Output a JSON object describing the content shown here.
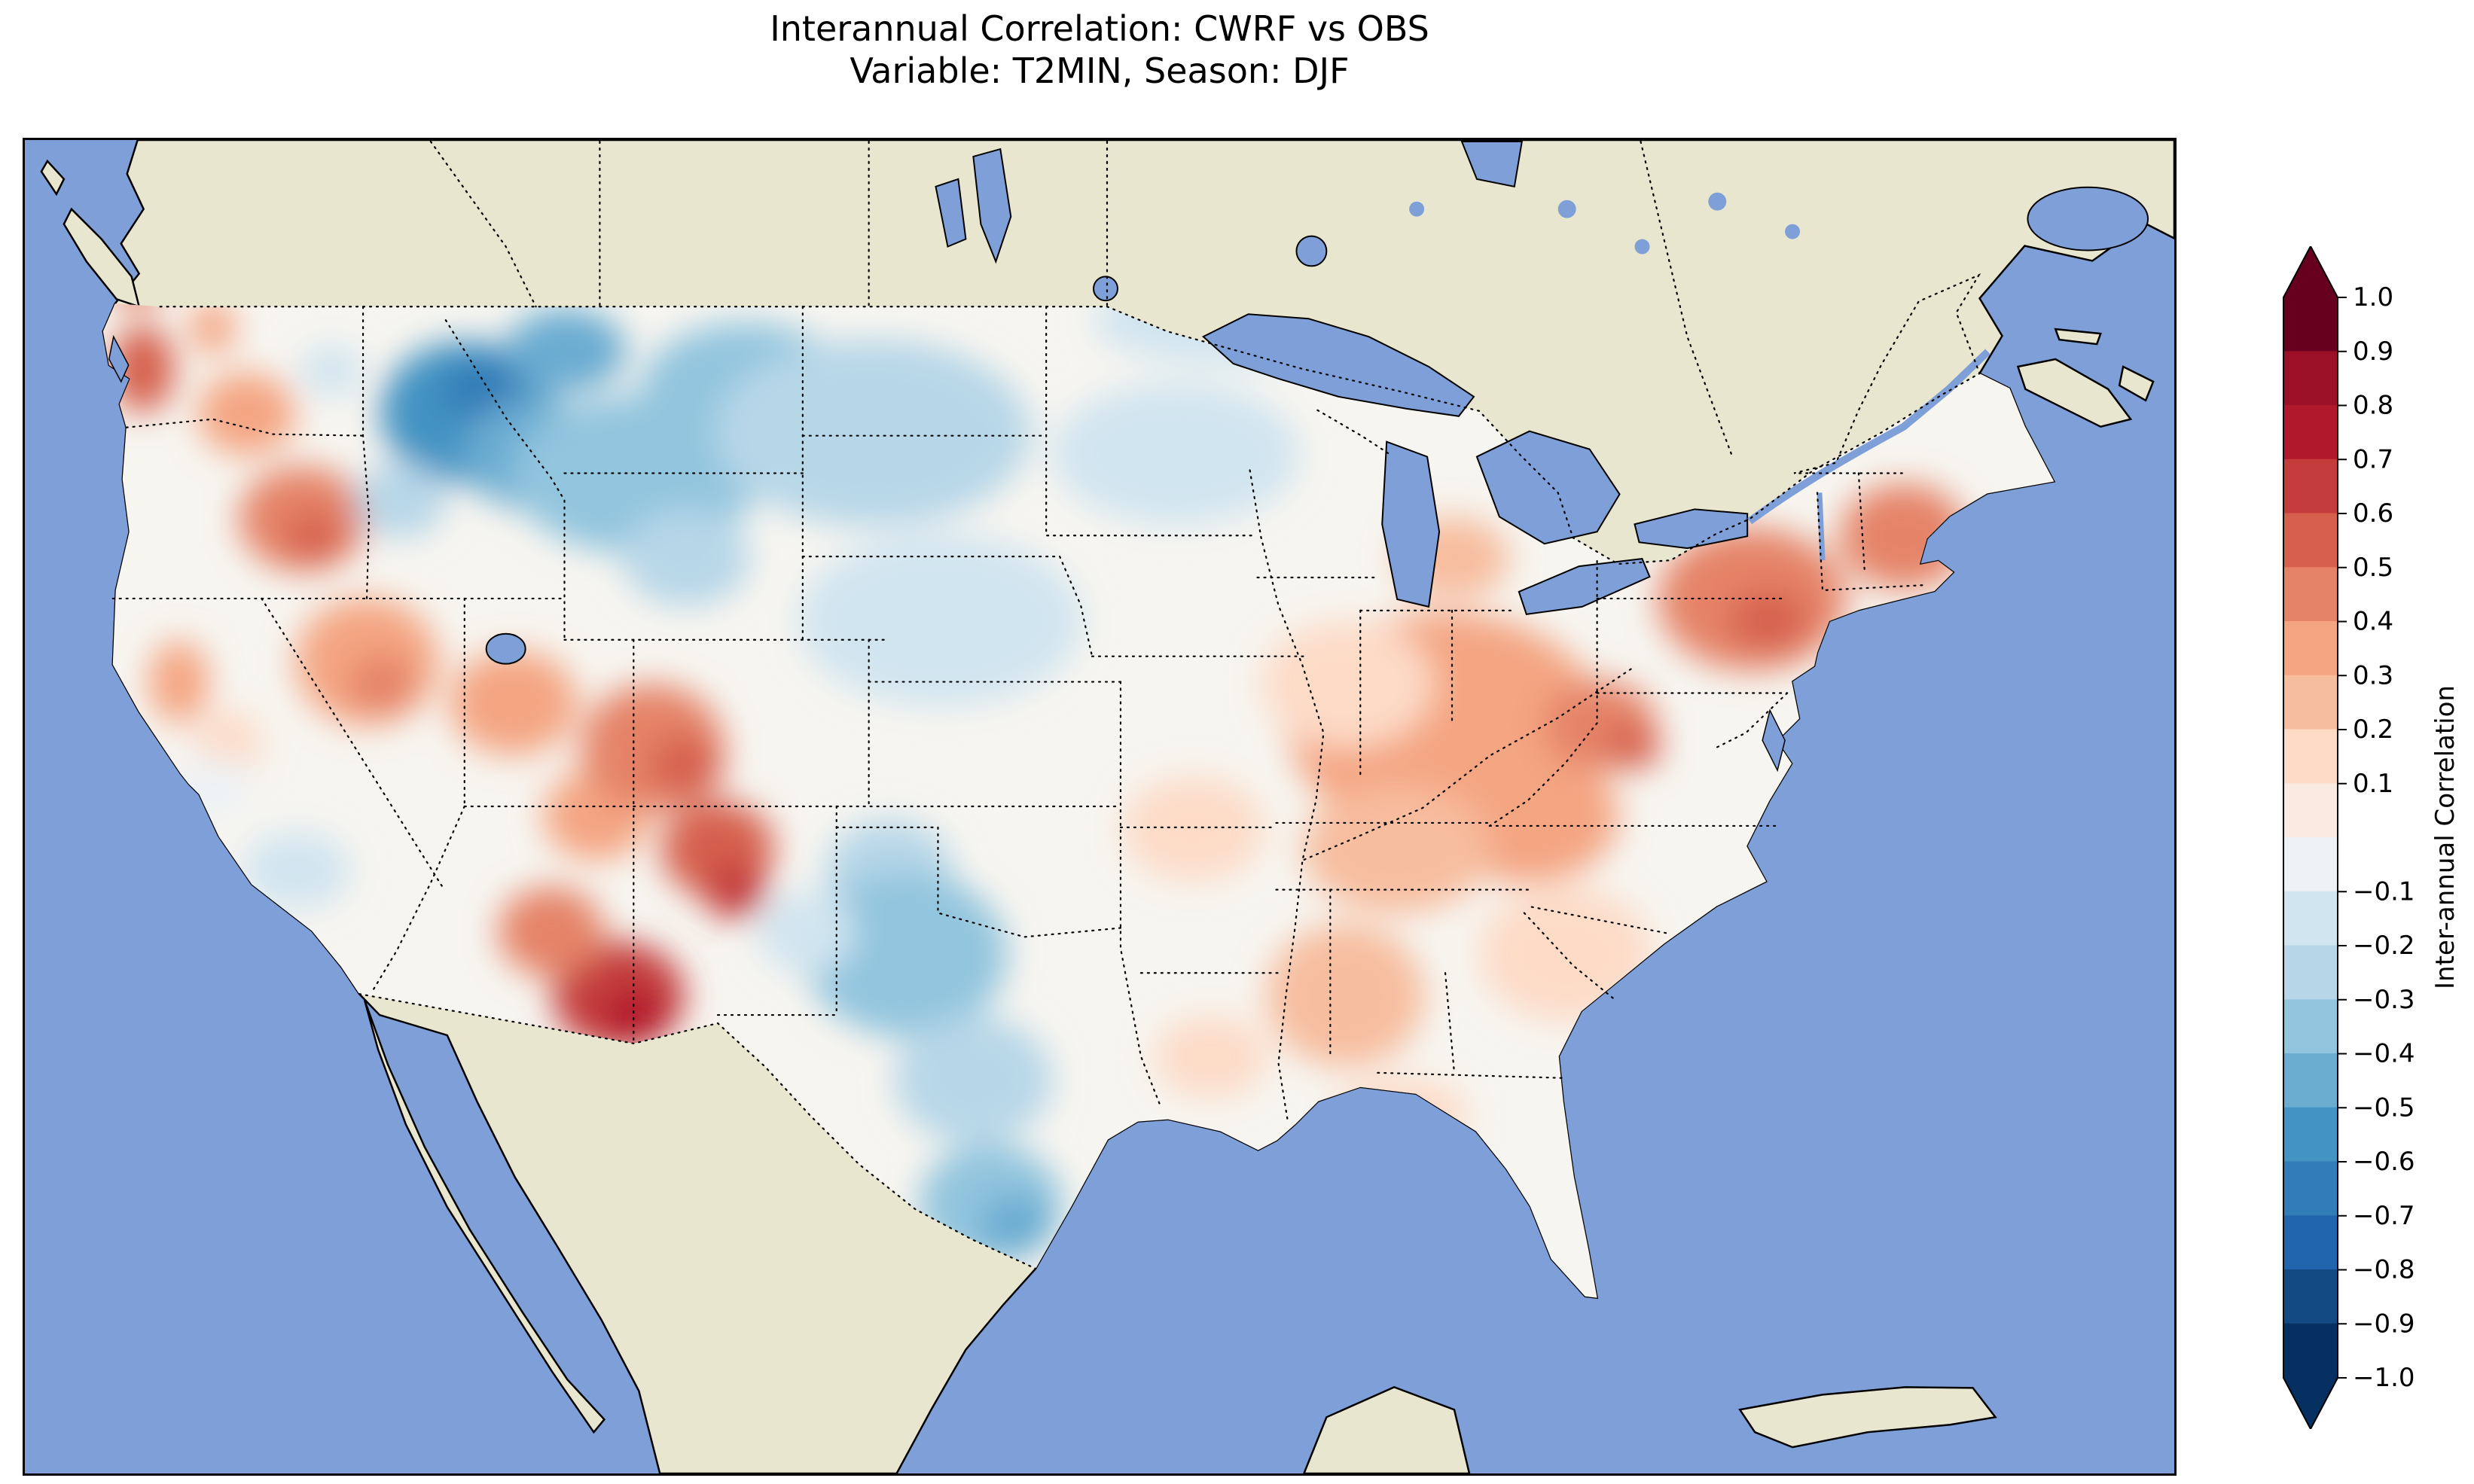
{
  "figure": {
    "title_line1": "Interannual Correlation: CWRF vs OBS",
    "title_line2": "Variable: T2MIN, Season: DJF"
  },
  "colors": {
    "ocean": "#7e9fd8",
    "land": "#e8e6ce",
    "us_base": "#f7f5f0",
    "lake": "#7e9fd8",
    "coastline": "#000000"
  },
  "chart_data": {
    "type": "heatmap",
    "title": "Interannual Correlation: CWRF vs OBS",
    "subtitle": "Variable: T2MIN, Season: DJF",
    "model": "CWRF",
    "reference": "OBS",
    "variable": "T2MIN",
    "season": "DJF",
    "region_shown": "Continental United States with surrounding Canada, Mexico and oceans",
    "colorbar": {
      "label": "Inter-annual Correlation",
      "min": -1.0,
      "max": 1.0,
      "level_step": 0.1,
      "colormap": "RdBu_r (diverging; red = positive, blue = negative correlation)",
      "extend": "both",
      "arrow_top_color": "#67001f",
      "arrow_bottom_color": "#053061",
      "segments": [
        "#67001f",
        "#9b1027",
        "#b2182b",
        "#c43c3c",
        "#d6604d",
        "#e58368",
        "#f4a582",
        "#f7bd9f",
        "#fddbc7",
        "#faeae1",
        "#edf2f5",
        "#d1e5f0",
        "#b7d7e8",
        "#92c5de",
        "#6bacd1",
        "#4393c3",
        "#327cb7",
        "#2166ac",
        "#144a84",
        "#053061"
      ],
      "ticks": [
        {
          "value": 1.0,
          "label": "1.0"
        },
        {
          "value": 0.9,
          "label": "0.9"
        },
        {
          "value": 0.8,
          "label": "0.8"
        },
        {
          "value": 0.7,
          "label": "0.7"
        },
        {
          "value": 0.6,
          "label": "0.6"
        },
        {
          "value": 0.5,
          "label": "0.5"
        },
        {
          "value": 0.4,
          "label": "0.4"
        },
        {
          "value": 0.3,
          "label": "0.3"
        },
        {
          "value": 0.2,
          "label": "0.2"
        },
        {
          "value": 0.1,
          "label": "0.1"
        },
        {
          "value": -0.1,
          "label": "−0.1"
        },
        {
          "value": -0.2,
          "label": "−0.2"
        },
        {
          "value": -0.3,
          "label": "−0.3"
        },
        {
          "value": -0.4,
          "label": "−0.4"
        },
        {
          "value": -0.5,
          "label": "−0.5"
        },
        {
          "value": -0.6,
          "label": "−0.6"
        },
        {
          "value": -0.7,
          "label": "−0.7"
        },
        {
          "value": -0.8,
          "label": "−0.8"
        },
        {
          "value": -0.9,
          "label": "−0.9"
        },
        {
          "value": -1.0,
          "label": "−1.0"
        }
      ]
    },
    "approx_regional_values": [
      {
        "region": "Washington coast / Olympic Peninsula",
        "corr": 0.45
      },
      {
        "region": "Eastern Oregon",
        "corr": 0.4
      },
      {
        "region": "Northern Rockies (N Idaho / W Montana)",
        "corr": -0.5
      },
      {
        "region": "Eastern Montana / Dakotas",
        "corr": -0.25
      },
      {
        "region": "Great Basin (Nevada / Utah)",
        "corr": 0.35
      },
      {
        "region": "Four Corners / Colorado Plateau",
        "corr": 0.5
      },
      {
        "region": "Southern Arizona - New Mexico border",
        "corr": 0.65
      },
      {
        "region": "High Plains (Nebraska / Kansas)",
        "corr": -0.1
      },
      {
        "region": "Central and South Texas",
        "corr": -0.35
      },
      {
        "region": "Upper Midwest (Minnesota / Wisconsin)",
        "corr": -0.2
      },
      {
        "region": "Ohio Valley / Midwest",
        "corr": 0.35
      },
      {
        "region": "Appalachians / Mid-Atlantic",
        "corr": 0.45
      },
      {
        "region": "Northeast (New York / New England)",
        "corr": 0.45
      },
      {
        "region": "Tennessee Valley / Southeast",
        "corr": 0.25
      },
      {
        "region": "Gulf Coast / Deep South",
        "corr": 0.2
      },
      {
        "region": "Florida peninsula",
        "corr": 0.1
      },
      {
        "region": "California",
        "corr": 0.05
      }
    ]
  }
}
